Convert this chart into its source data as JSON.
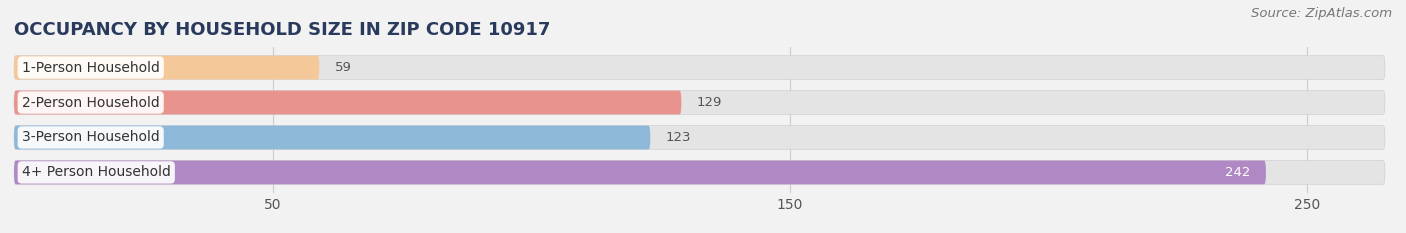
{
  "title": "OCCUPANCY BY HOUSEHOLD SIZE IN ZIP CODE 10917",
  "source": "Source: ZipAtlas.com",
  "categories": [
    "1-Person Household",
    "2-Person Household",
    "3-Person Household",
    "4+ Person Household"
  ],
  "values": [
    59,
    129,
    123,
    242
  ],
  "bar_colors": [
    "#f5c899",
    "#e8938e",
    "#8db8d8",
    "#b088c4"
  ],
  "xlim_max": 265,
  "xticks": [
    50,
    150,
    250
  ],
  "bg_color": "#f2f2f2",
  "bar_bg_color": "#e8e8e8",
  "title_fontsize": 13,
  "source_fontsize": 9.5,
  "label_fontsize": 10,
  "value_fontsize": 9.5,
  "value_color_inside": "#ffffff",
  "value_color_outside": "#555555"
}
